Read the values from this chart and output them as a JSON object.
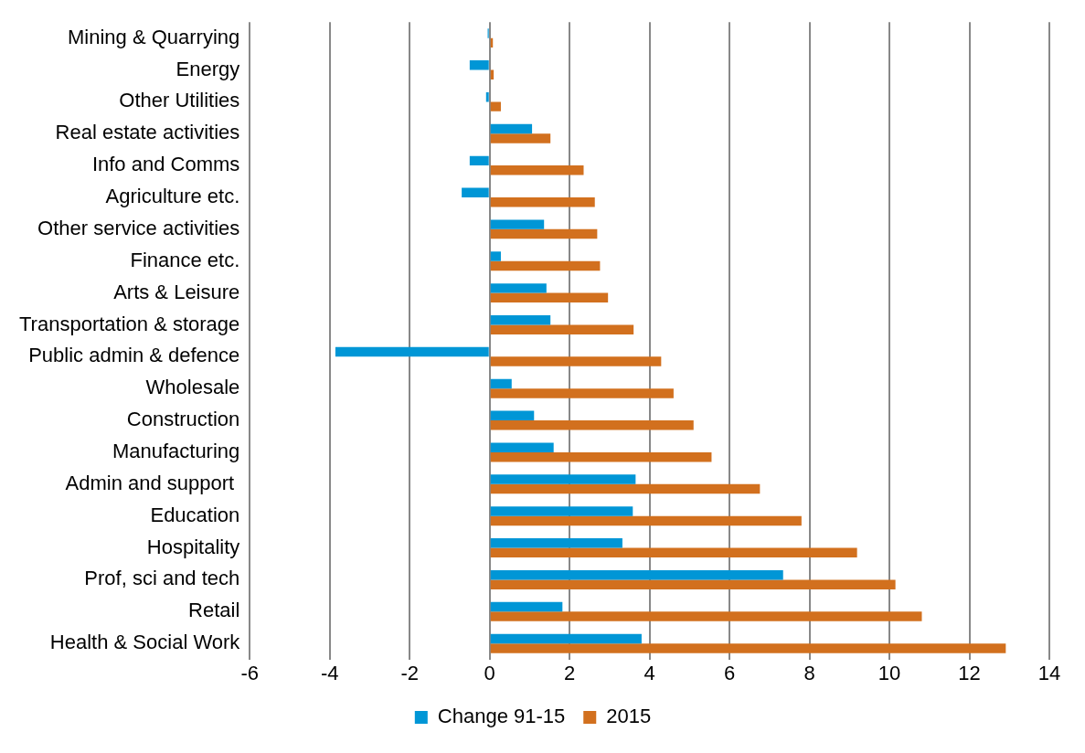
{
  "chart_data": {
    "type": "bar",
    "orientation": "horizontal",
    "categories": [
      "Mining & Quarrying",
      "Energy",
      "Other Utilities",
      "Real estate activities",
      "Info and Comms",
      "Agriculture etc.",
      "Other service activities",
      "Finance etc.",
      "Arts & Leisure",
      "Transportation & storage",
      "Public admin & defence",
      "Wholesale",
      "Construction",
      "Manufacturing",
      "Admin and support ",
      "Education",
      "Hospitality",
      "Prof, sci and tech",
      "Retail",
      "Health & Social Work"
    ],
    "series": [
      {
        "name": "Change 91-15",
        "color": "#0096d6",
        "values": [
          -0.05,
          -0.5,
          -0.09,
          1.06,
          -0.5,
          -0.7,
          1.36,
          0.28,
          1.42,
          1.52,
          -3.86,
          0.55,
          1.11,
          1.6,
          3.65,
          3.58,
          3.32,
          7.34,
          1.82,
          3.8
        ]
      },
      {
        "name": "2015",
        "color": "#d2701e",
        "values": [
          0.08,
          0.1,
          0.28,
          1.52,
          2.35,
          2.63,
          2.69,
          2.76,
          2.96,
          3.6,
          4.29,
          4.6,
          5.1,
          5.55,
          6.76,
          7.8,
          9.19,
          10.15,
          10.81,
          12.91
        ]
      }
    ],
    "xlim": [
      -6,
      14
    ],
    "xticks": [
      -6,
      -4,
      -2,
      0,
      2,
      4,
      6,
      8,
      10,
      12,
      14
    ],
    "grid": "x",
    "legend": "bottom"
  }
}
